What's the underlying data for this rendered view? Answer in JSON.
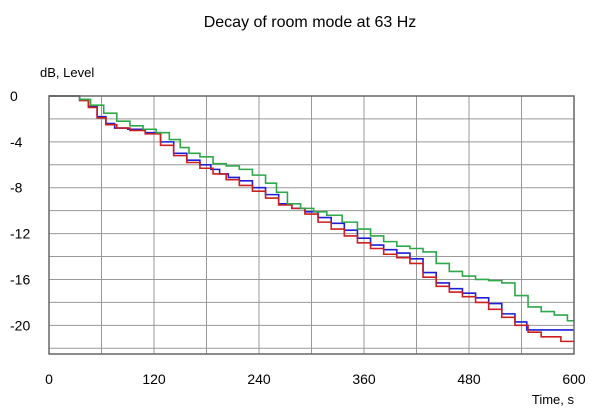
{
  "chart_data": {
    "type": "line",
    "title": "Decay of room mode at 63 Hz",
    "ylabel": "dB, Level",
    "xlabel": "Time,  s",
    "xlim": [
      0,
      600
    ],
    "ylim": [
      -22.5,
      0
    ],
    "x_ticks": [
      0,
      120,
      240,
      360,
      480,
      600
    ],
    "y_ticks": [
      0,
      -4,
      -8,
      -12,
      -16,
      -20
    ],
    "grid": true,
    "legend": "none",
    "series": [
      {
        "color": "#1f1fd6",
        "points": [
          [
            0,
            0
          ],
          [
            30,
            0
          ],
          [
            40,
            -0.3
          ],
          [
            50,
            -0.9
          ],
          [
            60,
            -1.8
          ],
          [
            70,
            -2.4
          ],
          [
            80,
            -2.8
          ],
          [
            100,
            -2.9
          ],
          [
            120,
            -3.2
          ],
          [
            135,
            -4.0
          ],
          [
            150,
            -5.0
          ],
          [
            165,
            -5.6
          ],
          [
            180,
            -6.0
          ],
          [
            190,
            -6.4
          ],
          [
            200,
            -6.8
          ],
          [
            210,
            -7.1
          ],
          [
            225,
            -7.4
          ],
          [
            240,
            -8.0
          ],
          [
            255,
            -8.6
          ],
          [
            270,
            -9.4
          ],
          [
            285,
            -9.8
          ],
          [
            300,
            -10.1
          ],
          [
            315,
            -10.6
          ],
          [
            330,
            -11.1
          ],
          [
            345,
            -11.7
          ],
          [
            360,
            -12.4
          ],
          [
            375,
            -13.0
          ],
          [
            390,
            -13.4
          ],
          [
            405,
            -13.7
          ],
          [
            420,
            -14.2
          ],
          [
            435,
            -15.4
          ],
          [
            450,
            -16.3
          ],
          [
            465,
            -16.8
          ],
          [
            480,
            -17.2
          ],
          [
            495,
            -17.6
          ],
          [
            510,
            -18.1
          ],
          [
            525,
            -19.0
          ],
          [
            540,
            -19.7
          ],
          [
            552,
            -20.4
          ],
          [
            570,
            -20.4
          ],
          [
            600,
            -20.4
          ]
        ]
      },
      {
        "color": "#cc1f1f",
        "points": [
          [
            0,
            0
          ],
          [
            30,
            0
          ],
          [
            40,
            -0.4
          ],
          [
            50,
            -1.0
          ],
          [
            60,
            -1.9
          ],
          [
            70,
            -2.5
          ],
          [
            85,
            -2.8
          ],
          [
            100,
            -3.0
          ],
          [
            120,
            -3.3
          ],
          [
            135,
            -4.3
          ],
          [
            150,
            -5.2
          ],
          [
            165,
            -5.8
          ],
          [
            180,
            -6.3
          ],
          [
            195,
            -6.8
          ],
          [
            210,
            -7.3
          ],
          [
            225,
            -7.8
          ],
          [
            240,
            -8.3
          ],
          [
            255,
            -8.9
          ],
          [
            270,
            -9.5
          ],
          [
            285,
            -9.8
          ],
          [
            300,
            -10.3
          ],
          [
            315,
            -11.0
          ],
          [
            330,
            -11.6
          ],
          [
            345,
            -12.2
          ],
          [
            360,
            -12.8
          ],
          [
            375,
            -13.3
          ],
          [
            390,
            -13.8
          ],
          [
            405,
            -14.1
          ],
          [
            420,
            -14.6
          ],
          [
            435,
            -15.8
          ],
          [
            450,
            -16.6
          ],
          [
            465,
            -17.1
          ],
          [
            480,
            -17.5
          ],
          [
            495,
            -18.0
          ],
          [
            510,
            -18.6
          ],
          [
            525,
            -19.3
          ],
          [
            540,
            -20.0
          ],
          [
            555,
            -20.6
          ],
          [
            570,
            -21.0
          ],
          [
            600,
            -21.4
          ]
        ]
      },
      {
        "color": "#2fa84a",
        "points": [
          [
            0,
            0
          ],
          [
            30,
            0
          ],
          [
            40,
            -0.3
          ],
          [
            55,
            -0.8
          ],
          [
            70,
            -1.5
          ],
          [
            85,
            -2.2
          ],
          [
            100,
            -2.6
          ],
          [
            115,
            -2.9
          ],
          [
            130,
            -3.2
          ],
          [
            145,
            -3.8
          ],
          [
            155,
            -4.5
          ],
          [
            165,
            -5.0
          ],
          [
            180,
            -5.3
          ],
          [
            195,
            -5.9
          ],
          [
            210,
            -6.1
          ],
          [
            225,
            -6.4
          ],
          [
            240,
            -6.9
          ],
          [
            255,
            -7.6
          ],
          [
            265,
            -8.4
          ],
          [
            280,
            -9.4
          ],
          [
            295,
            -9.8
          ],
          [
            310,
            -10.1
          ],
          [
            325,
            -10.4
          ],
          [
            345,
            -11.0
          ],
          [
            360,
            -11.6
          ],
          [
            375,
            -12.2
          ],
          [
            390,
            -12.7
          ],
          [
            405,
            -13.1
          ],
          [
            420,
            -13.3
          ],
          [
            435,
            -13.6
          ],
          [
            450,
            -14.6
          ],
          [
            465,
            -15.3
          ],
          [
            480,
            -15.7
          ],
          [
            495,
            -16.0
          ],
          [
            510,
            -16.1
          ],
          [
            525,
            -16.3
          ],
          [
            540,
            -17.4
          ],
          [
            555,
            -18.4
          ],
          [
            570,
            -18.8
          ],
          [
            585,
            -19.1
          ],
          [
            600,
            -19.6
          ]
        ]
      }
    ]
  }
}
